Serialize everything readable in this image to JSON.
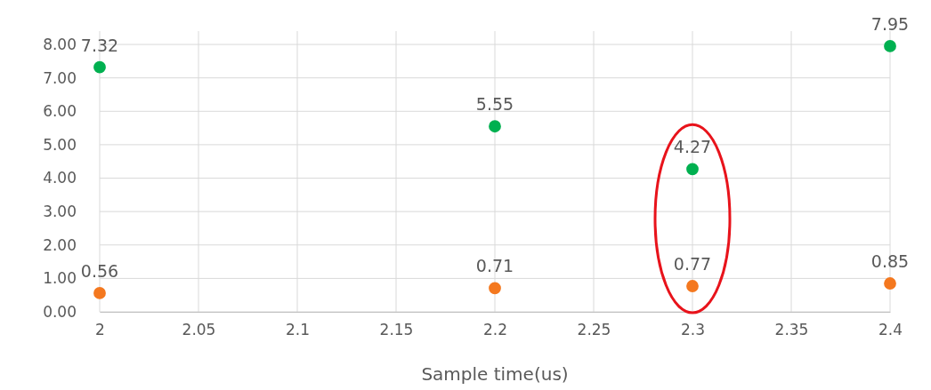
{
  "chart_data": {
    "type": "scatter",
    "xlabel": "Sample time(us)",
    "x": [
      2,
      2.2,
      2.3,
      2.4
    ],
    "series": [
      {
        "color": "#00b050",
        "values": [
          7.32,
          5.55,
          4.27,
          7.95
        ]
      },
      {
        "color": "#f4781f",
        "values": [
          0.56,
          0.71,
          0.77,
          0.85
        ]
      }
    ],
    "xlim": [
      2,
      2.4
    ],
    "xticks": [
      2,
      2.05,
      2.1,
      2.15,
      2.2,
      2.25,
      2.3,
      2.35,
      2.4
    ],
    "ylim": [
      0,
      8.4
    ],
    "yticks": [
      {
        "value": 0,
        "label": "0.00"
      },
      {
        "value": 1,
        "label": "1.00"
      },
      {
        "value": 2,
        "label": "2.00"
      },
      {
        "value": 3,
        "label": "3.00"
      },
      {
        "value": 4,
        "label": "4.00"
      },
      {
        "value": 5,
        "label": "5.00"
      },
      {
        "value": 6,
        "label": "6.00"
      },
      {
        "value": 7,
        "label": "7.00"
      },
      {
        "value": 8,
        "label": "8.00"
      }
    ],
    "grid": true,
    "marker": "circle",
    "data_labels": true
  }
}
